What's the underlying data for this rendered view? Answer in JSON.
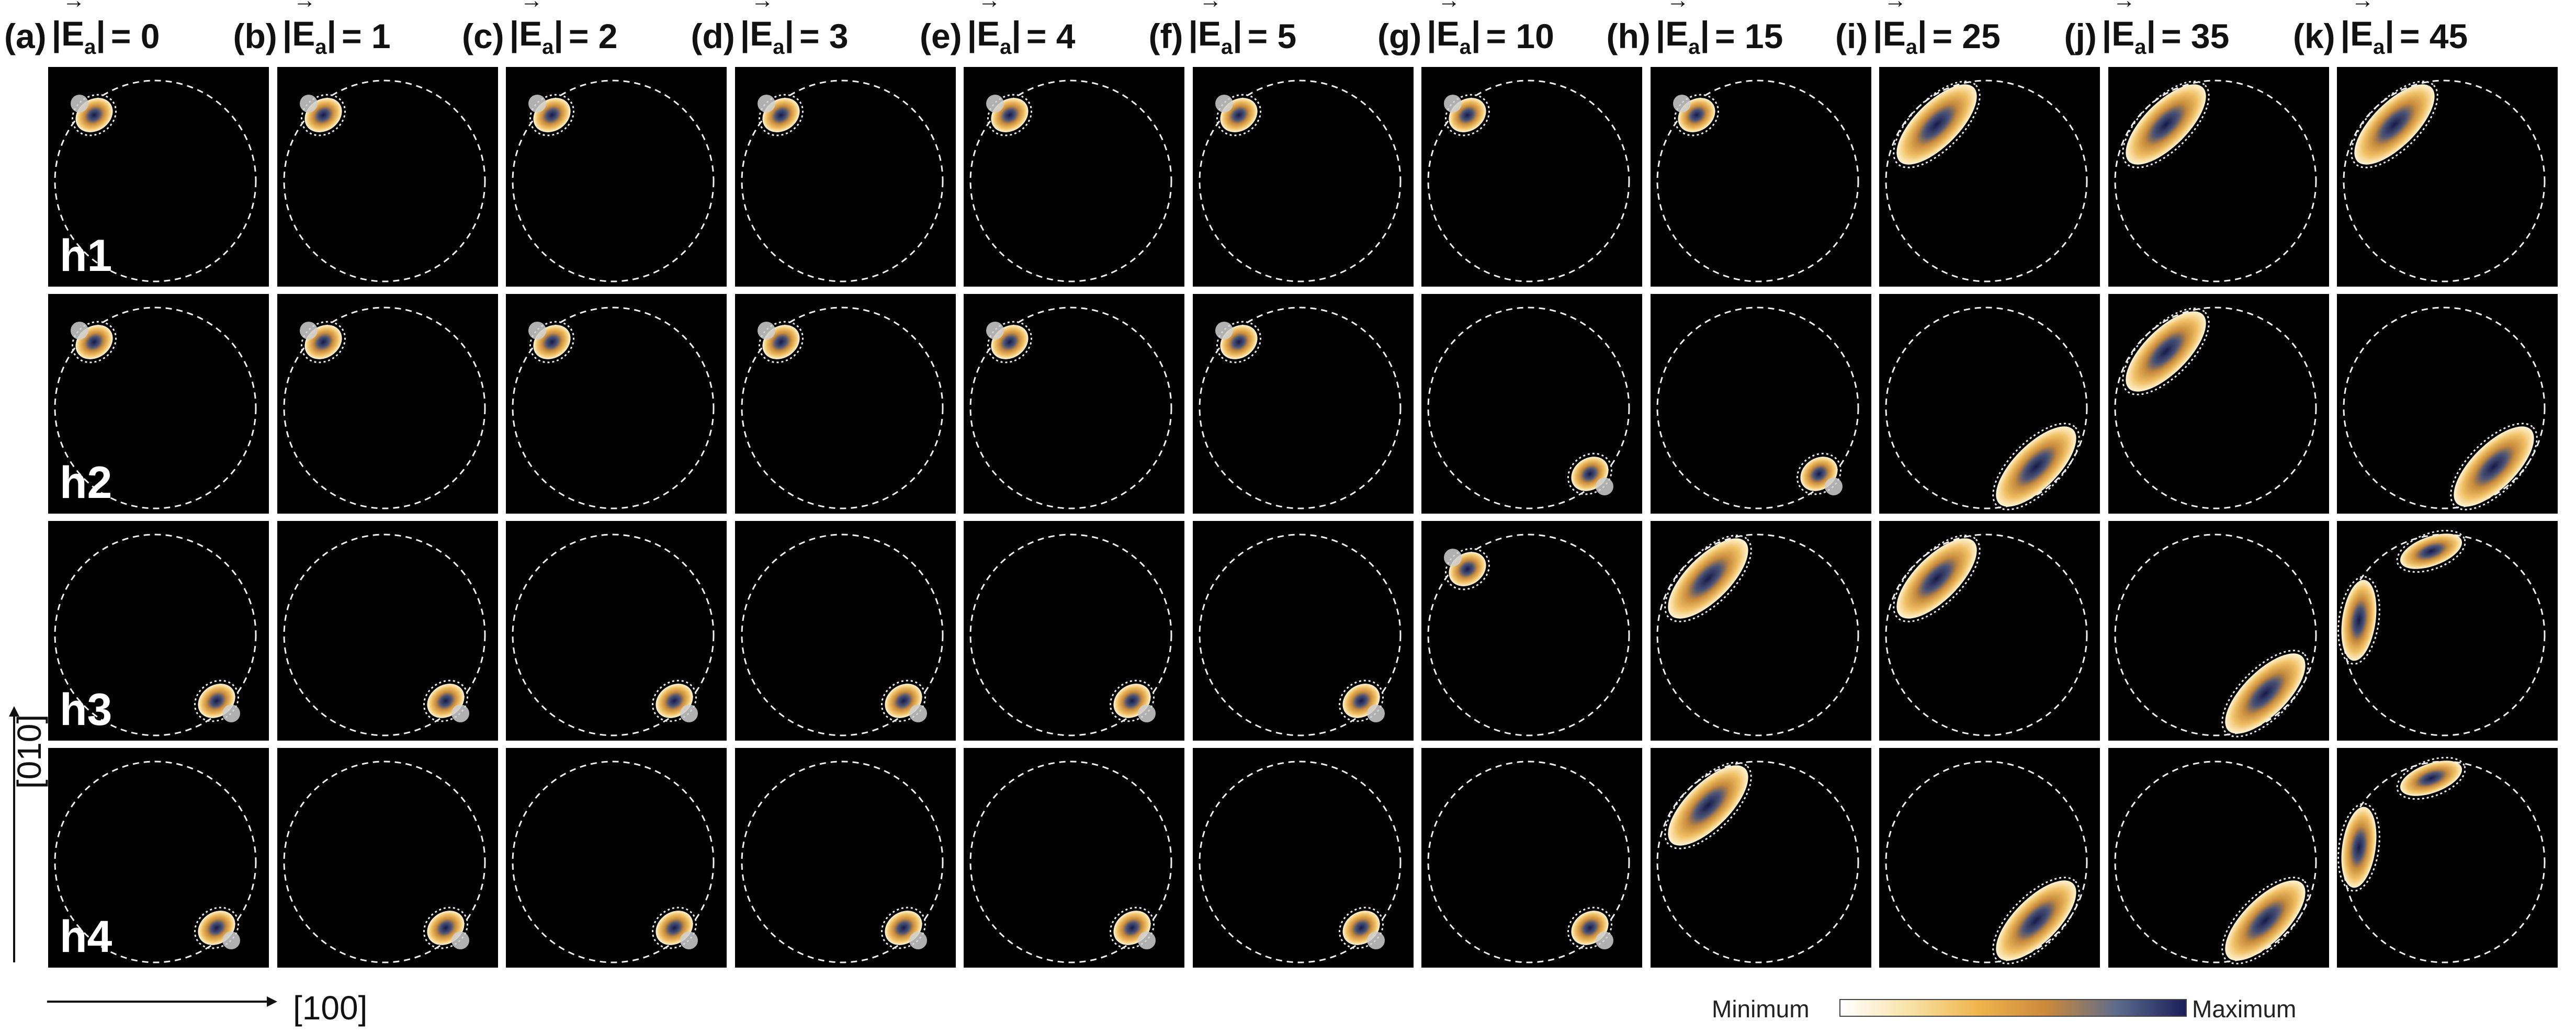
{
  "columns": [
    {
      "label": "(a)",
      "value": "0"
    },
    {
      "label": "(b)",
      "value": "1"
    },
    {
      "label": "(c)",
      "value": "2"
    },
    {
      "label": "(d)",
      "value": "3"
    },
    {
      "label": "(e)",
      "value": "4"
    },
    {
      "label": "(f)",
      "value": "5"
    },
    {
      "label": "(g)",
      "value": "10"
    },
    {
      "label": "(h)",
      "value": "15"
    },
    {
      "label": "(i)",
      "value": "25"
    },
    {
      "label": "(j)",
      "value": "35"
    },
    {
      "label": "(k)",
      "value": "45"
    }
  ],
  "field_symbol": "E",
  "field_subscript": "a",
  "rows": [
    "h1",
    "h2",
    "h3",
    "h4"
  ],
  "states": [
    [
      "ul",
      "ul",
      "ul",
      "ul",
      "ul",
      "ul",
      "ul",
      "ul",
      "ul_big",
      "ul_big",
      "ul_big"
    ],
    [
      "ul",
      "ul",
      "ul",
      "ul",
      "ul",
      "ul",
      "lr",
      "lr",
      "lr_big",
      "ul_big",
      "lr_big"
    ],
    [
      "lr",
      "lr",
      "lr",
      "lr",
      "lr",
      "lr",
      "ul",
      "ul_big",
      "ul_big",
      "lr_big",
      "double"
    ],
    [
      "lr",
      "lr",
      "lr",
      "lr",
      "lr",
      "lr",
      "lr",
      "ul_big",
      "lr_big",
      "lr_big",
      "double"
    ]
  ],
  "axis_x": "[100]",
  "axis_y": "[010]",
  "colorbar": {
    "min_label": "Minimum",
    "max_label": "Maximum",
    "colors": [
      "#ffffff",
      "#f7e2a6",
      "#efb44c",
      "#c9883c",
      "#5e6c8c",
      "#1a1f5a"
    ]
  }
}
